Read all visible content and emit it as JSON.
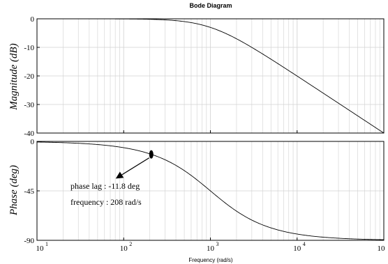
{
  "chart_data": {
    "type": "line",
    "title": "Bode Diagram",
    "xlabel": "Frequency  (rad/s)",
    "xscale": "log",
    "xlim": [
      10,
      100000
    ],
    "x_tick_labels": [
      {
        "base": "10",
        "exp": "1"
      },
      {
        "base": "10",
        "exp": "2"
      },
      {
        "base": "10",
        "exp": "3"
      },
      {
        "base": "10",
        "exp": "4"
      },
      {
        "base": "10",
        "exp": ""
      }
    ],
    "grid": true,
    "corner_frequency": 1000,
    "panels": [
      {
        "name": "magnitude",
        "ylabel": "Magnitude (dB)",
        "ylim": [
          -40,
          0
        ],
        "yticks": [
          0,
          -10,
          -20,
          -30,
          -40
        ],
        "ytick_labels": [
          "0",
          "-10",
          "-20",
          "-30",
          "-40"
        ],
        "series": [
          {
            "x": [
              10,
              100,
              300,
              1000,
              3000,
              10000,
              30000,
              100000
            ],
            "y": [
              0,
              -0.04,
              -0.4,
              -3.0,
              -10.0,
              -20.0,
              -29.5,
              -40.0
            ]
          }
        ]
      },
      {
        "name": "phase",
        "ylabel": "Phase (deg)",
        "ylim": [
          -90,
          0
        ],
        "yticks": [
          0,
          -45,
          -90
        ],
        "ytick_labels": [
          "0",
          "-45",
          "-90"
        ],
        "series": [
          {
            "x": [
              10,
              100,
              208,
              500,
              1000,
              2000,
              5000,
              10000,
              100000
            ],
            "y": [
              -0.6,
              -5.7,
              -11.8,
              -26.6,
              -45.0,
              -63.4,
              -78.7,
              -84.3,
              -89.4
            ]
          }
        ],
        "annotations": [
          {
            "point": [
              208,
              -11.8
            ],
            "lines": [
              "phase lag : -11.8 deg",
              "frequency : 208 rad/s"
            ]
          }
        ]
      }
    ]
  }
}
